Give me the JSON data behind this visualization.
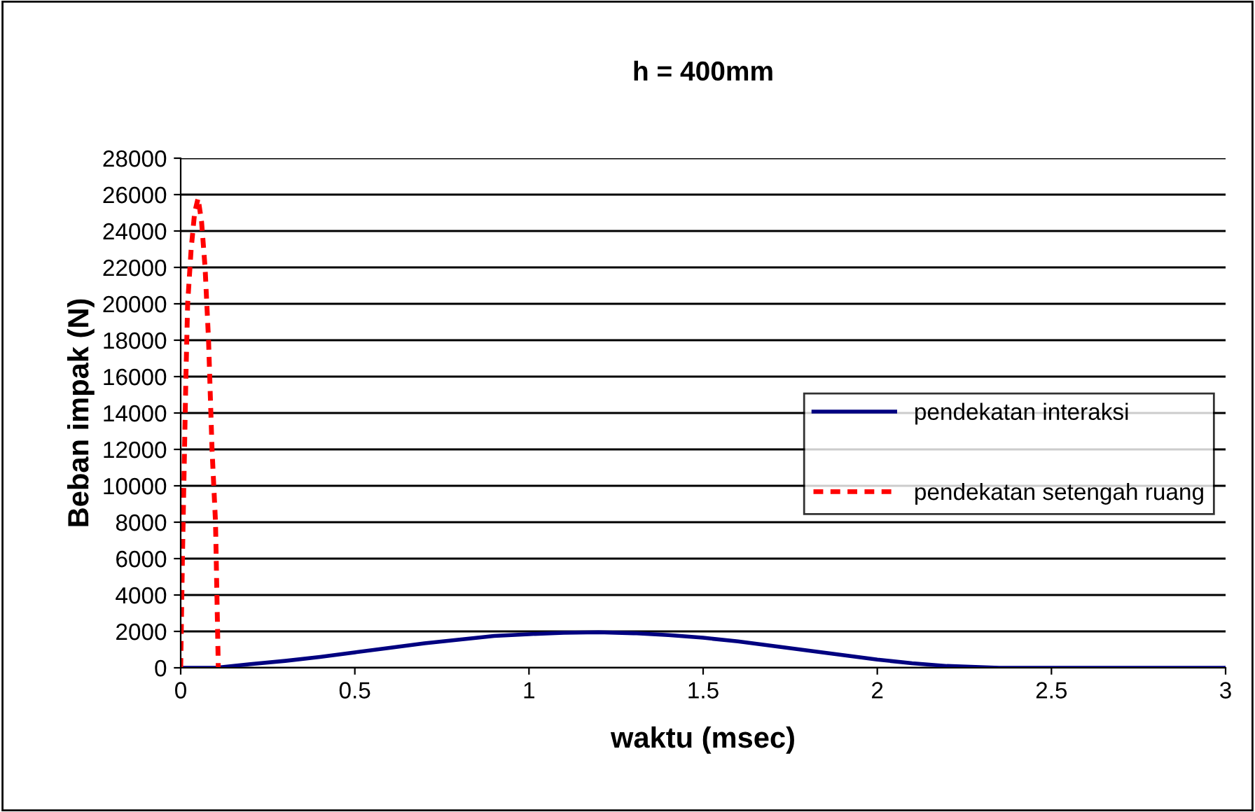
{
  "chart_data": {
    "type": "line",
    "title": "h = 400mm",
    "xlabel": "waktu (msec)",
    "ylabel": "Beban impak (N)",
    "xlim": [
      0,
      3
    ],
    "xticks": [
      0,
      0.5,
      1,
      1.5,
      2,
      2.5,
      3
    ],
    "ylim": [
      0,
      28000
    ],
    "yticks": [
      0,
      2000,
      4000,
      6000,
      8000,
      10000,
      12000,
      14000,
      16000,
      18000,
      20000,
      22000,
      24000,
      26000,
      28000
    ],
    "grid": "y",
    "legend": "right",
    "marker": "none",
    "series": [
      {
        "name": "pendekatan interaksi",
        "color": "#000080",
        "line_style": "solid",
        "x": [
          0,
          0.1,
          0.2,
          0.3,
          0.4,
          0.5,
          0.6,
          0.7,
          0.8,
          0.9,
          1.0,
          1.1,
          1.2,
          1.3,
          1.4,
          1.5,
          1.6,
          1.7,
          1.8,
          1.9,
          2.0,
          2.1,
          2.2,
          2.35,
          3
        ],
        "values": [
          0,
          0,
          200,
          380,
          600,
          850,
          1100,
          1350,
          1550,
          1750,
          1850,
          1920,
          1950,
          1900,
          1800,
          1650,
          1450,
          1200,
          950,
          700,
          450,
          250,
          100,
          0,
          0
        ]
      },
      {
        "name": "pendekatan setengah ruang",
        "color": "#ff0000",
        "line_style": "dotted",
        "x": [
          0,
          0.005,
          0.01,
          0.015,
          0.02,
          0.03,
          0.04,
          0.05,
          0.06,
          0.07,
          0.08,
          0.09,
          0.1,
          0.105,
          0.108
        ],
        "values": [
          0,
          6000,
          11000,
          16000,
          20000,
          23000,
          25000,
          25800,
          24500,
          22000,
          18000,
          12000,
          8000,
          3000,
          0
        ]
      }
    ]
  }
}
